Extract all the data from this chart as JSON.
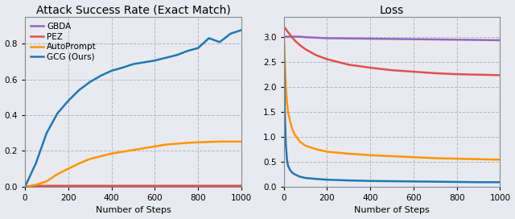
{
  "left_title": "Attack Success Rate (Exact Match)",
  "right_title": "Loss",
  "xlabel": "Number of Steps",
  "colors": {
    "GBDA": "#9467bd",
    "PEZ": "#e05050",
    "AutoPrompt": "#ff9500",
    "GCG": "#1f77b4"
  },
  "legend_labels": [
    "GBDA",
    "PEZ",
    "AutoPrompt",
    "GCG (Ours)"
  ],
  "asr": {
    "steps": [
      0,
      50,
      100,
      150,
      200,
      250,
      300,
      350,
      400,
      450,
      500,
      550,
      600,
      650,
      700,
      750,
      800,
      850,
      900,
      950,
      1000
    ],
    "GBDA": [
      0.0,
      0.0,
      0.0,
      0.0,
      0.0,
      0.0,
      0.0,
      0.0,
      0.0,
      0.0,
      0.0,
      0.0,
      0.0,
      0.0,
      0.0,
      0.0,
      0.0,
      0.0,
      0.0,
      0.0,
      0.0
    ],
    "PEZ": [
      0.0,
      0.005,
      0.005,
      0.005,
      0.005,
      0.005,
      0.005,
      0.005,
      0.005,
      0.005,
      0.005,
      0.005,
      0.005,
      0.005,
      0.005,
      0.005,
      0.005,
      0.005,
      0.005,
      0.005,
      0.005
    ],
    "AutoPrompt": [
      0.0,
      0.01,
      0.03,
      0.07,
      0.1,
      0.13,
      0.155,
      0.17,
      0.185,
      0.195,
      0.205,
      0.215,
      0.225,
      0.235,
      0.24,
      0.245,
      0.248,
      0.25,
      0.252,
      0.252,
      0.252
    ],
    "GCG": [
      0.0,
      0.13,
      0.3,
      0.41,
      0.48,
      0.54,
      0.585,
      0.62,
      0.648,
      0.665,
      0.685,
      0.695,
      0.705,
      0.72,
      0.735,
      0.758,
      0.775,
      0.83,
      0.808,
      0.855,
      0.875
    ]
  },
  "loss": {
    "steps": [
      0,
      5,
      10,
      15,
      20,
      30,
      40,
      50,
      75,
      100,
      150,
      200,
      300,
      400,
      500,
      600,
      700,
      800,
      900,
      1000
    ],
    "GBDA": [
      3.0,
      3.0,
      3.0,
      3.0,
      3.0,
      3.0,
      3.0,
      3.0,
      3.0,
      2.99,
      2.98,
      2.97,
      2.965,
      2.96,
      2.955,
      2.95,
      2.945,
      2.94,
      2.935,
      2.93
    ],
    "PEZ": [
      3.2,
      3.18,
      3.15,
      3.12,
      3.09,
      3.04,
      2.98,
      2.93,
      2.83,
      2.75,
      2.63,
      2.55,
      2.44,
      2.38,
      2.33,
      2.3,
      2.27,
      2.25,
      2.24,
      2.23
    ],
    "AutoPrompt": [
      3.2,
      2.5,
      2.0,
      1.7,
      1.5,
      1.3,
      1.15,
      1.05,
      0.9,
      0.82,
      0.75,
      0.7,
      0.66,
      0.63,
      0.61,
      0.59,
      0.57,
      0.56,
      0.55,
      0.54
    ],
    "GCG": [
      3.2,
      1.5,
      0.85,
      0.55,
      0.42,
      0.33,
      0.28,
      0.25,
      0.2,
      0.175,
      0.155,
      0.14,
      0.125,
      0.115,
      0.11,
      0.105,
      0.1,
      0.095,
      0.09,
      0.09
    ]
  },
  "asr_ylim": [
    0.0,
    0.95
  ],
  "loss_ylim": [
    0.0,
    3.4
  ],
  "xlim": [
    0,
    1000
  ],
  "bg_color": "#e8eaf0",
  "title_fontsize": 10,
  "label_fontsize": 8,
  "tick_fontsize": 7.5,
  "legend_fontsize": 7.5
}
